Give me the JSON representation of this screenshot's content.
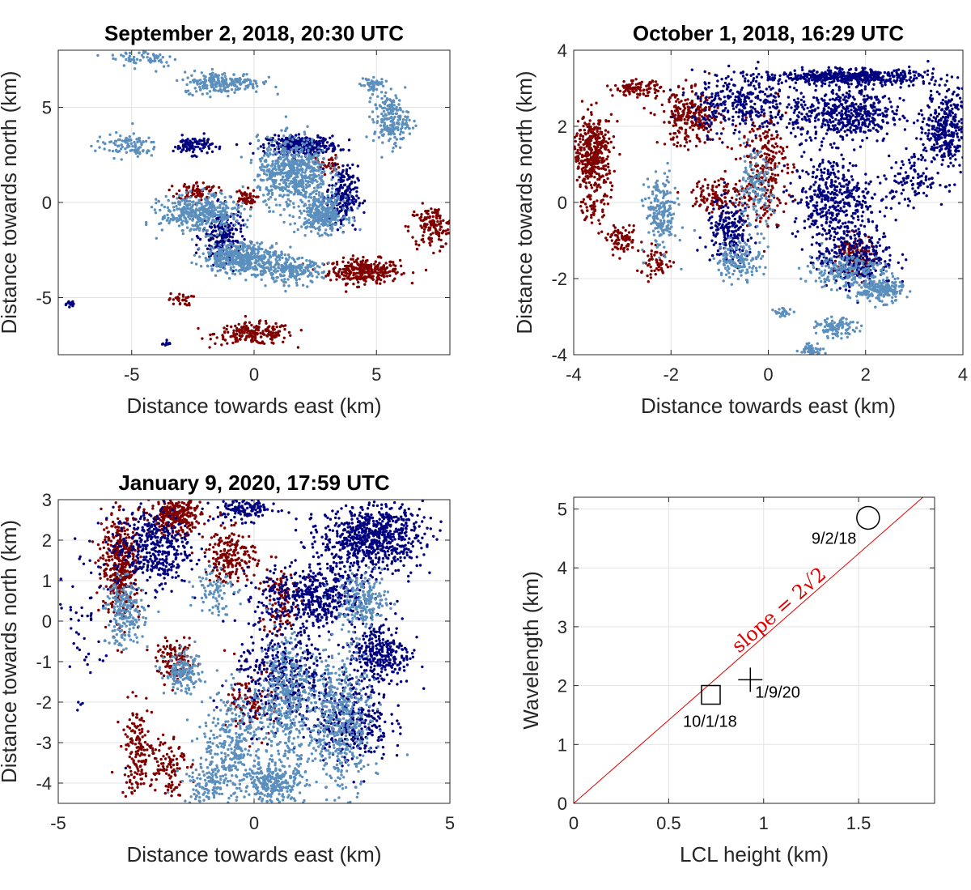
{
  "colors": {
    "red": "#800000",
    "navy": "#00007f",
    "lightblue": "#5b8fbd",
    "fit_line": "#e00000"
  },
  "chart_data": [
    {
      "type": "scatter",
      "title": "September 2, 2018, 20:30 UTC",
      "xlabel": "Distance towards east (km)",
      "ylabel": "Distance towards north (km)",
      "xlim": [
        -8,
        8
      ],
      "ylim": [
        -8,
        8
      ],
      "xticks": [
        -5,
        0,
        5
      ],
      "yticks": [
        -5,
        0,
        5
      ],
      "grid": true,
      "clusters": [
        {
          "color": "lightblue",
          "cx": -4.5,
          "cy": 7.6,
          "sx": 0.9,
          "sy": 0.3,
          "n": 60
        },
        {
          "color": "lightblue",
          "cx": -1.3,
          "cy": 6.3,
          "sx": 1.0,
          "sy": 0.35,
          "n": 220
        },
        {
          "color": "lightblue",
          "cx": 5.6,
          "cy": 4.3,
          "sx": 0.45,
          "sy": 0.8,
          "n": 200
        },
        {
          "color": "lightblue",
          "cx": 4.8,
          "cy": 6.2,
          "sx": 0.3,
          "sy": 0.3,
          "n": 50
        },
        {
          "color": "lightblue",
          "cx": -5.2,
          "cy": 3.0,
          "sx": 0.8,
          "sy": 0.4,
          "n": 100
        },
        {
          "color": "lightblue",
          "cx": 1.6,
          "cy": 1.6,
          "sx": 0.9,
          "sy": 1.1,
          "n": 600
        },
        {
          "color": "lightblue",
          "cx": 2.8,
          "cy": -0.6,
          "sx": 0.6,
          "sy": 0.6,
          "n": 300
        },
        {
          "color": "lightblue",
          "cx": -2.2,
          "cy": -0.6,
          "sx": 1.0,
          "sy": 0.6,
          "n": 400
        },
        {
          "color": "lightblue",
          "cx": -0.5,
          "cy": -2.9,
          "sx": 1.0,
          "sy": 0.5,
          "n": 450
        },
        {
          "color": "lightblue",
          "cx": 1.5,
          "cy": -3.6,
          "sx": 0.8,
          "sy": 0.4,
          "n": 200
        },
        {
          "color": "navy",
          "cx": 2.0,
          "cy": 3.0,
          "sx": 0.9,
          "sy": 0.3,
          "n": 300
        },
        {
          "color": "navy",
          "cx": -2.5,
          "cy": 3.0,
          "sx": 0.5,
          "sy": 0.3,
          "n": 100
        },
        {
          "color": "navy",
          "cx": -1.3,
          "cy": -1.8,
          "sx": 0.5,
          "sy": 0.9,
          "n": 200
        },
        {
          "color": "navy",
          "cx": 3.6,
          "cy": 0.3,
          "sx": 0.4,
          "sy": 1.0,
          "n": 200
        },
        {
          "color": "navy",
          "cx": -7.5,
          "cy": -5.3,
          "sx": 0.15,
          "sy": 0.1,
          "n": 15
        },
        {
          "color": "navy",
          "cx": -3.6,
          "cy": -7.4,
          "sx": 0.1,
          "sy": 0.1,
          "n": 10
        },
        {
          "color": "red",
          "cx": 4.5,
          "cy": -3.6,
          "sx": 0.9,
          "sy": 0.4,
          "n": 300
        },
        {
          "color": "red",
          "cx": 0.0,
          "cy": -6.9,
          "sx": 1.0,
          "sy": 0.35,
          "n": 200
        },
        {
          "color": "red",
          "cx": 7.3,
          "cy": -1.3,
          "sx": 0.6,
          "sy": 0.7,
          "n": 150
        },
        {
          "color": "red",
          "cx": -2.3,
          "cy": 0.6,
          "sx": 0.5,
          "sy": 0.3,
          "n": 80
        },
        {
          "color": "red",
          "cx": -0.4,
          "cy": 0.2,
          "sx": 0.3,
          "sy": 0.3,
          "n": 50
        },
        {
          "color": "red",
          "cx": -3.0,
          "cy": -5.1,
          "sx": 0.3,
          "sy": 0.2,
          "n": 30
        },
        {
          "color": "red",
          "cx": 3.0,
          "cy": 2.0,
          "sx": 0.3,
          "sy": 0.3,
          "n": 40
        }
      ]
    },
    {
      "type": "scatter",
      "title": "October 1, 2018, 16:29 UTC",
      "xlabel": "Distance towards east (km)",
      "ylabel": "Distance towards north (km)",
      "xlim": [
        -4,
        4
      ],
      "ylim": [
        -4,
        4
      ],
      "xticks": [
        -4,
        -2,
        0,
        2,
        4
      ],
      "yticks": [
        -4,
        -2,
        0,
        2,
        4
      ],
      "grid": true,
      "clusters": [
        {
          "color": "red",
          "cx": -3.6,
          "cy": 1.3,
          "sx": 0.25,
          "sy": 0.6,
          "n": 400
        },
        {
          "color": "red",
          "cx": -2.7,
          "cy": 3.0,
          "sx": 0.3,
          "sy": 0.12,
          "n": 100
        },
        {
          "color": "red",
          "cx": -1.6,
          "cy": 2.2,
          "sx": 0.4,
          "sy": 0.45,
          "n": 250
        },
        {
          "color": "red",
          "cx": -1.0,
          "cy": 0.2,
          "sx": 0.35,
          "sy": 0.3,
          "n": 120
        },
        {
          "color": "red",
          "cx": -3.0,
          "cy": -1.0,
          "sx": 0.2,
          "sy": 0.2,
          "n": 80
        },
        {
          "color": "red",
          "cx": -2.3,
          "cy": -1.6,
          "sx": 0.25,
          "sy": 0.25,
          "n": 60
        },
        {
          "color": "red",
          "cx": -0.1,
          "cy": 1.0,
          "sx": 0.3,
          "sy": 1.0,
          "n": 250
        },
        {
          "color": "red",
          "cx": 1.8,
          "cy": -1.4,
          "sx": 0.25,
          "sy": 0.35,
          "n": 120
        },
        {
          "color": "red",
          "cx": -3.6,
          "cy": -0.1,
          "sx": 0.15,
          "sy": 0.3,
          "n": 60
        },
        {
          "color": "navy",
          "cx": 1.6,
          "cy": 3.3,
          "sx": 1.1,
          "sy": 0.12,
          "n": 500
        },
        {
          "color": "navy",
          "cx": 3.7,
          "cy": 2.0,
          "sx": 0.3,
          "sy": 0.6,
          "n": 350
        },
        {
          "color": "navy",
          "cx": 1.6,
          "cy": 2.3,
          "sx": 0.7,
          "sy": 0.45,
          "n": 500
        },
        {
          "color": "navy",
          "cx": 1.3,
          "cy": 0.1,
          "sx": 0.5,
          "sy": 0.7,
          "n": 400
        },
        {
          "color": "navy",
          "cx": 1.8,
          "cy": -1.4,
          "sx": 0.5,
          "sy": 0.5,
          "n": 300
        },
        {
          "color": "navy",
          "cx": -0.6,
          "cy": 2.6,
          "sx": 0.6,
          "sy": 0.5,
          "n": 300
        },
        {
          "color": "navy",
          "cx": -0.8,
          "cy": -0.8,
          "sx": 0.3,
          "sy": 0.5,
          "n": 200
        },
        {
          "color": "navy",
          "cx": 3.0,
          "cy": 0.6,
          "sx": 0.4,
          "sy": 0.4,
          "n": 120
        },
        {
          "color": "lightblue",
          "cx": -2.2,
          "cy": -0.3,
          "sx": 0.2,
          "sy": 0.6,
          "n": 200
        },
        {
          "color": "lightblue",
          "cx": 2.3,
          "cy": -2.3,
          "sx": 0.3,
          "sy": 0.2,
          "n": 200
        },
        {
          "color": "lightblue",
          "cx": 1.4,
          "cy": -3.3,
          "sx": 0.25,
          "sy": 0.15,
          "n": 100
        },
        {
          "color": "lightblue",
          "cx": 0.9,
          "cy": -3.85,
          "sx": 0.15,
          "sy": 0.1,
          "n": 50
        },
        {
          "color": "lightblue",
          "cx": 0.3,
          "cy": -2.9,
          "sx": 0.12,
          "sy": 0.08,
          "n": 25
        },
        {
          "color": "lightblue",
          "cx": -0.6,
          "cy": -1.5,
          "sx": 0.3,
          "sy": 0.3,
          "n": 150
        },
        {
          "color": "lightblue",
          "cx": 1.6,
          "cy": -1.8,
          "sx": 0.5,
          "sy": 0.3,
          "n": 200
        },
        {
          "color": "lightblue",
          "cx": -0.3,
          "cy": 0.3,
          "sx": 0.25,
          "sy": 0.6,
          "n": 150
        }
      ]
    },
    {
      "type": "scatter",
      "title": "January 9, 2020, 17:59 UTC",
      "xlabel": "Distance towards east (km)",
      "ylabel": "Distance towards north (km)",
      "xlim": [
        -5,
        5
      ],
      "ylim": [
        -4.5,
        3
      ],
      "xticks": [
        -5,
        0,
        5
      ],
      "yticks": [
        -4,
        -3,
        -2,
        -1,
        0,
        1,
        2,
        3
      ],
      "grid": true,
      "clusters": [
        {
          "color": "red",
          "cx": -3.4,
          "cy": 1.4,
          "sx": 0.3,
          "sy": 0.8,
          "n": 400
        },
        {
          "color": "red",
          "cx": -2.0,
          "cy": 2.6,
          "sx": 0.4,
          "sy": 0.3,
          "n": 300
        },
        {
          "color": "red",
          "cx": -0.6,
          "cy": 1.6,
          "sx": 0.4,
          "sy": 0.4,
          "n": 200
        },
        {
          "color": "red",
          "cx": -2.0,
          "cy": -1.0,
          "sx": 0.3,
          "sy": 0.3,
          "n": 120
        },
        {
          "color": "red",
          "cx": -3.0,
          "cy": -3.2,
          "sx": 0.25,
          "sy": 0.7,
          "n": 150
        },
        {
          "color": "red",
          "cx": -2.2,
          "cy": -3.5,
          "sx": 0.3,
          "sy": 0.5,
          "n": 100
        },
        {
          "color": "red",
          "cx": 0.6,
          "cy": 0.5,
          "sx": 0.3,
          "sy": 0.6,
          "n": 100
        },
        {
          "color": "red",
          "cx": 0.0,
          "cy": -2.0,
          "sx": 0.4,
          "sy": 0.5,
          "n": 100
        },
        {
          "color": "navy",
          "cx": 3.0,
          "cy": 2.1,
          "sx": 0.8,
          "sy": 0.5,
          "n": 700
        },
        {
          "color": "navy",
          "cx": 1.6,
          "cy": 0.6,
          "sx": 0.9,
          "sy": 0.5,
          "n": 500
        },
        {
          "color": "navy",
          "cx": 3.2,
          "cy": -0.8,
          "sx": 0.5,
          "sy": 0.5,
          "n": 300
        },
        {
          "color": "navy",
          "cx": -2.6,
          "cy": 1.8,
          "sx": 0.6,
          "sy": 0.6,
          "n": 400
        },
        {
          "color": "navy",
          "cx": 2.5,
          "cy": -2.5,
          "sx": 0.6,
          "sy": 0.6,
          "n": 300
        },
        {
          "color": "navy",
          "cx": 0.8,
          "cy": -1.4,
          "sx": 0.8,
          "sy": 0.8,
          "n": 400
        },
        {
          "color": "navy",
          "cx": -0.2,
          "cy": 2.8,
          "sx": 0.5,
          "sy": 0.2,
          "n": 150
        },
        {
          "color": "navy",
          "cx": -4.3,
          "cy": 0.0,
          "sx": 0.5,
          "sy": 1.5,
          "n": 60
        },
        {
          "color": "lightblue",
          "cx": 2.2,
          "cy": -2.5,
          "sx": 0.5,
          "sy": 1.1,
          "n": 500
        },
        {
          "color": "lightblue",
          "cx": 0.8,
          "cy": -2.0,
          "sx": 0.4,
          "sy": 1.0,
          "n": 400
        },
        {
          "color": "lightblue",
          "cx": 0.5,
          "cy": -4.0,
          "sx": 0.5,
          "sy": 0.3,
          "n": 250
        },
        {
          "color": "lightblue",
          "cx": -0.5,
          "cy": -3.0,
          "sx": 0.5,
          "sy": 0.8,
          "n": 300
        },
        {
          "color": "lightblue",
          "cx": -1.8,
          "cy": -1.3,
          "sx": 0.3,
          "sy": 0.3,
          "n": 150
        },
        {
          "color": "lightblue",
          "cx": -3.3,
          "cy": 0.2,
          "sx": 0.3,
          "sy": 0.5,
          "n": 200
        },
        {
          "color": "lightblue",
          "cx": 2.8,
          "cy": 0.5,
          "sx": 0.4,
          "sy": 0.4,
          "n": 200
        },
        {
          "color": "lightblue",
          "cx": -1.2,
          "cy": -4.0,
          "sx": 0.4,
          "sy": 0.3,
          "n": 120
        },
        {
          "color": "lightblue",
          "cx": -1.0,
          "cy": 0.8,
          "sx": 0.3,
          "sy": 0.4,
          "n": 80
        }
      ]
    },
    {
      "type": "scatter",
      "title": "",
      "xlabel": "LCL height (km)",
      "ylabel": "Wavelength (km)",
      "xlim": [
        0,
        1.9
      ],
      "ylim": [
        0,
        5.2
      ],
      "xticks": [
        0,
        0.5,
        1,
        1.5
      ],
      "yticks": [
        0,
        1,
        2,
        3,
        4,
        5
      ],
      "xtick_labels": [
        "0",
        "0.5",
        "1",
        "1.5"
      ],
      "grid": true,
      "points": [
        {
          "label": "9/2/18",
          "marker": "circle",
          "x": 1.55,
          "y": 4.85
        },
        {
          "label": "10/1/18",
          "marker": "square",
          "x": 0.72,
          "y": 1.85
        },
        {
          "label": "1/9/20",
          "marker": "plus",
          "x": 0.93,
          "y": 2.1
        }
      ],
      "line": {
        "slope": 2.8284,
        "intercept": 0,
        "label": "slope = 2√2"
      }
    }
  ]
}
